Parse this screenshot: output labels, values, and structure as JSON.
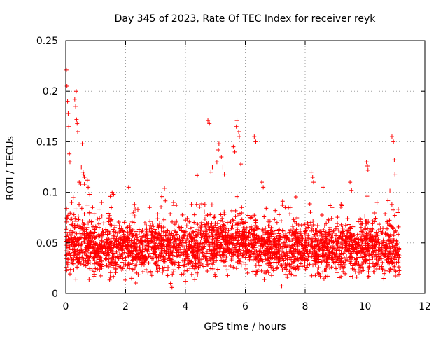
{
  "chart_data": {
    "type": "scatter",
    "title": "Day 345 of 2023, Rate Of TEC Index for receiver reyk",
    "xlabel": "GPS time / hours",
    "ylabel": "ROTI / TECUs",
    "xlim": [
      0,
      12
    ],
    "ylim": [
      0,
      0.25
    ],
    "xticks": [
      0,
      2,
      4,
      6,
      8,
      10,
      12
    ],
    "yticks": [
      0,
      0.05,
      0.1,
      0.15,
      0.2,
      0.25
    ],
    "xtick_labels": [
      "0",
      "2",
      "4",
      "6",
      "8",
      "10",
      "12"
    ],
    "ytick_labels": [
      "0",
      "0.05",
      "0.1",
      "0.15",
      "0.2",
      "0.25"
    ],
    "grid": true,
    "marker": "+",
    "series_color": "#ff0000",
    "data_range_hours": [
      0,
      11.15
    ],
    "typical_band": [
      0.02,
      0.07
    ],
    "series": [
      {
        "name": "ROTI",
        "x": [
          0.02,
          0.04,
          0.06,
          0.08,
          0.1,
          0.12,
          0.14,
          0.3,
          0.33,
          0.35,
          0.36,
          0.38,
          0.4,
          0.55,
          0.52,
          0.58,
          0.6,
          0.62,
          0.5,
          0.45,
          0.75,
          0.8,
          0.72,
          0.25,
          0.2,
          1.55,
          1.6,
          2.1,
          3.3,
          4.75,
          4.8,
          4.85,
          4.9,
          5.05,
          5.1,
          5.12,
          5.2,
          5.25,
          5.3,
          5.6,
          5.65,
          5.7,
          5.72,
          5.78,
          5.8,
          5.85,
          6.3,
          6.35,
          6.55,
          6.6,
          8.2,
          8.25,
          8.28,
          8.6,
          9.5,
          9.55,
          10.05,
          10.08,
          10.1,
          10.9,
          10.95,
          10.98,
          11.0,
          0.9,
          1.2,
          2.3,
          2.8,
          3.6,
          4.2,
          7.0,
          7.5,
          8.9,
          9.2,
          10.4,
          11.1,
          3.5,
          3.55,
          4.0,
          2.2
        ],
        "y": [
          0.221,
          0.205,
          0.19,
          0.178,
          0.165,
          0.138,
          0.13,
          0.192,
          0.185,
          0.2,
          0.172,
          0.168,
          0.16,
          0.148,
          0.125,
          0.12,
          0.118,
          0.115,
          0.108,
          0.11,
          0.105,
          0.098,
          0.112,
          0.095,
          0.09,
          0.1,
          0.098,
          0.105,
          0.104,
          0.171,
          0.168,
          0.12,
          0.125,
          0.13,
          0.142,
          0.148,
          0.135,
          0.125,
          0.118,
          0.145,
          0.14,
          0.165,
          0.171,
          0.16,
          0.155,
          0.128,
          0.155,
          0.15,
          0.11,
          0.105,
          0.12,
          0.115,
          0.11,
          0.105,
          0.11,
          0.102,
          0.13,
          0.126,
          0.122,
          0.155,
          0.15,
          0.132,
          0.118,
          0.085,
          0.09,
          0.088,
          0.085,
          0.09,
          0.088,
          0.082,
          0.085,
          0.085,
          0.088,
          0.09,
          0.08,
          0.01,
          0.006,
          0.012,
          0.015
        ]
      }
    ]
  }
}
